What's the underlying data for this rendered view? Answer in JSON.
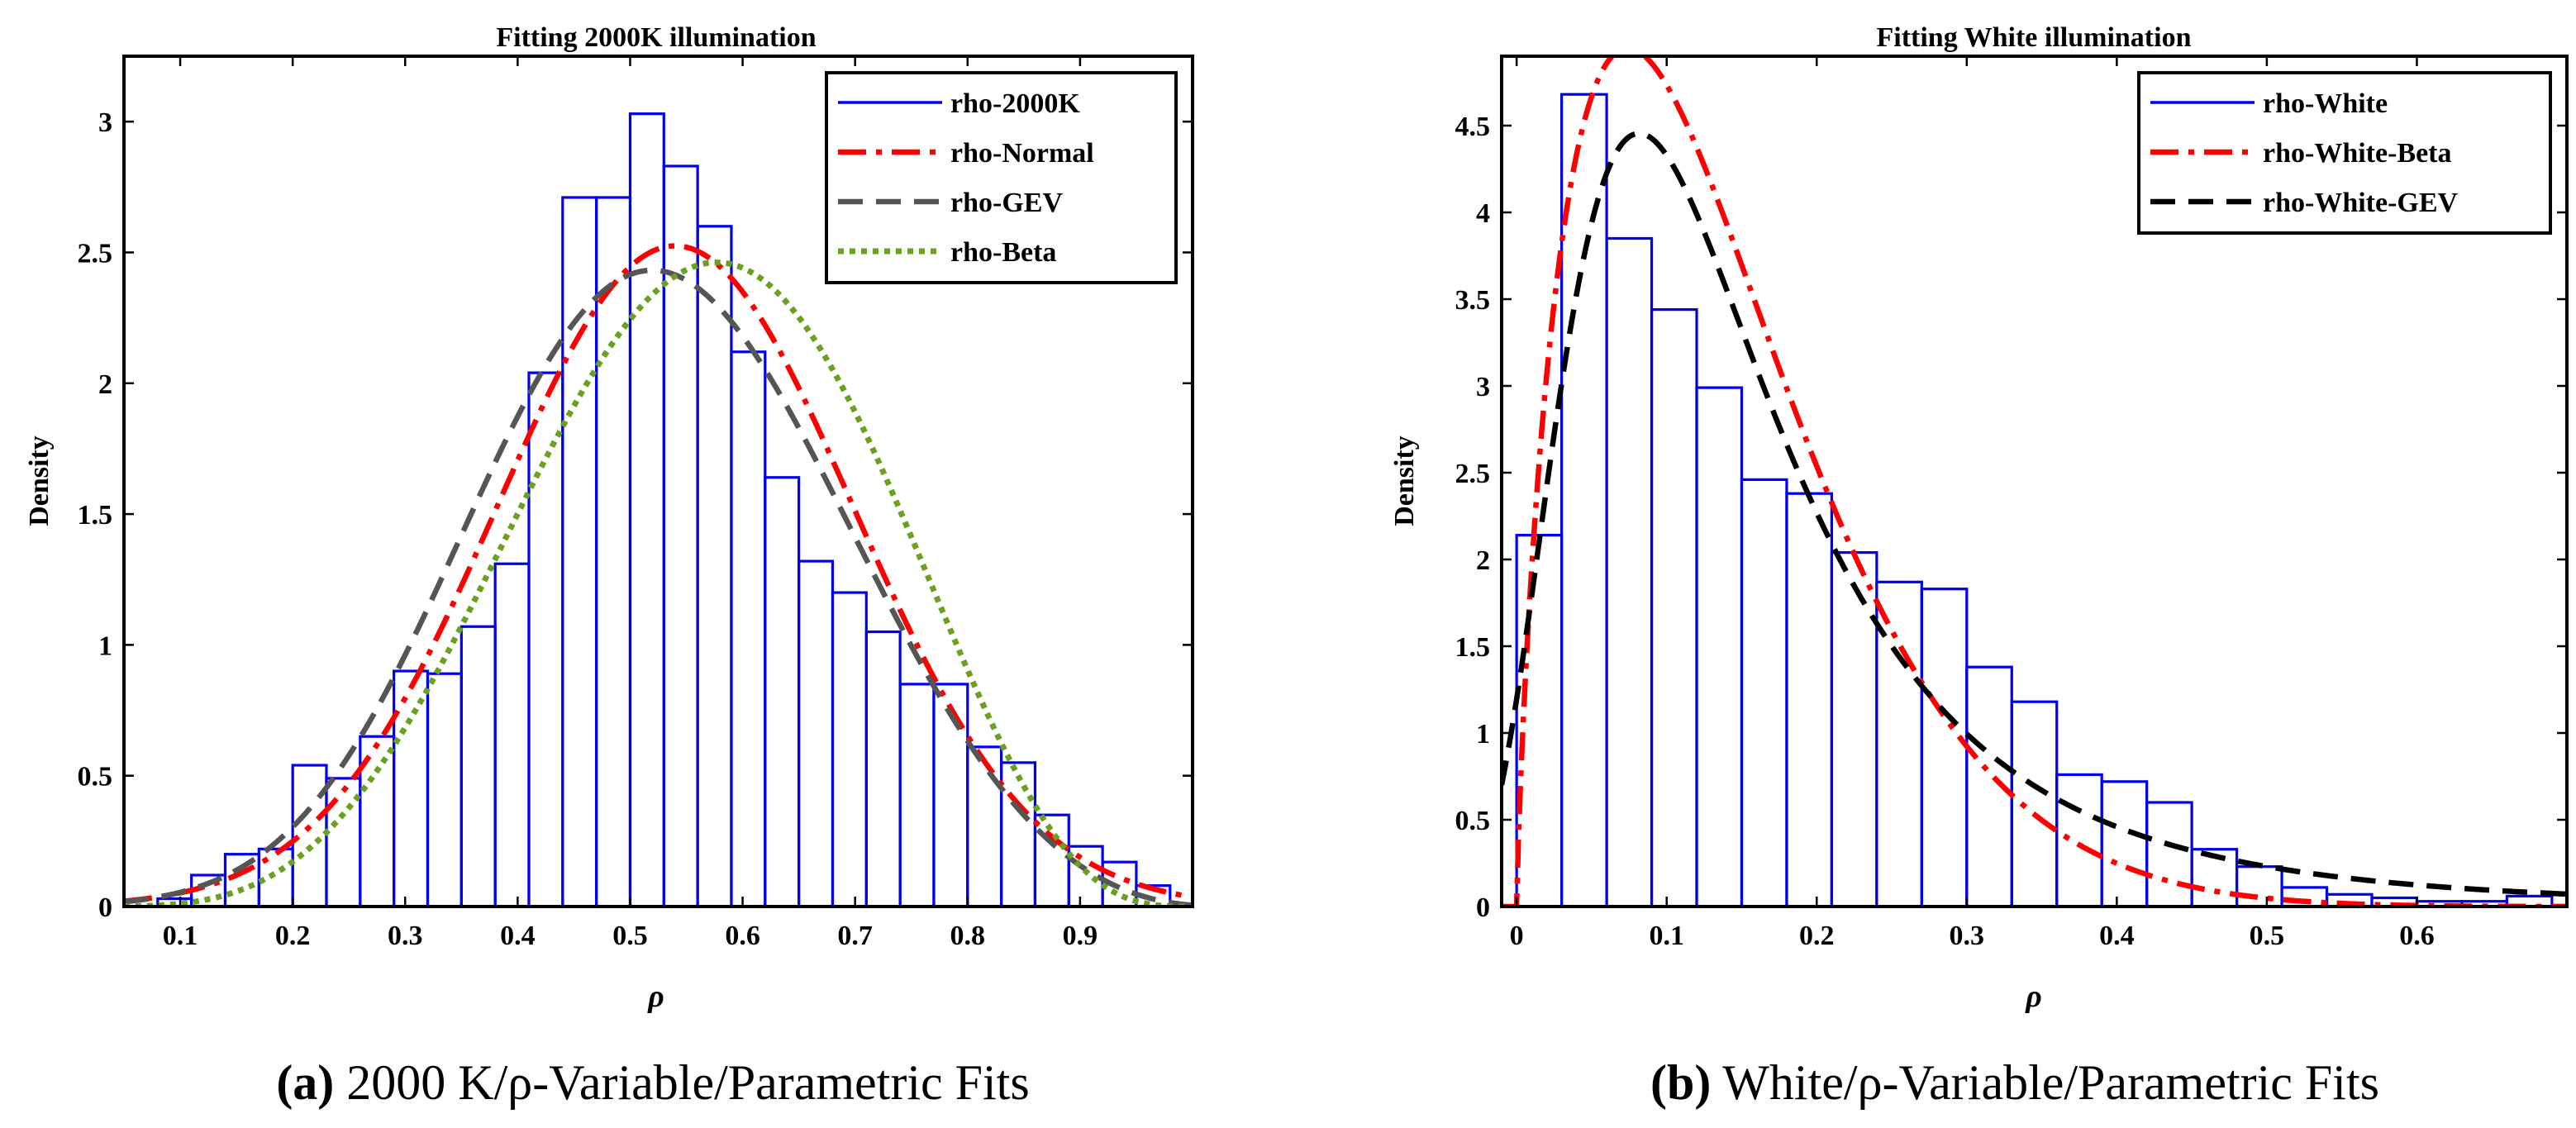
{
  "chart_data": [
    {
      "type": "histogram",
      "panel": "a",
      "title": "Fitting 2000K illumination",
      "xlabel": "ρ",
      "ylabel": "Density",
      "xlim": [
        0.05,
        1.0
      ],
      "ylim": [
        0,
        3.25
      ],
      "xticks": [
        "0.1",
        "0.2",
        "0.3",
        "0.4",
        "0.5",
        "0.6",
        "0.7",
        "0.8",
        "0.9"
      ],
      "xtick_values": [
        0.1,
        0.2,
        0.3,
        0.4,
        0.5,
        0.6,
        0.7,
        0.8,
        0.9
      ],
      "yticks": [
        "0",
        "0.5",
        "1",
        "1.5",
        "2",
        "2.5",
        "3"
      ],
      "ytick_values": [
        0,
        0.5,
        1,
        1.5,
        2,
        2.5,
        3
      ],
      "legend_position": "top-right",
      "histogram": {
        "name": "rho-2000K",
        "color": "#0000ee",
        "bin_edges": [
          0.05,
          0.08,
          0.11,
          0.14,
          0.17,
          0.2,
          0.23,
          0.26,
          0.29,
          0.32,
          0.35,
          0.38,
          0.41,
          0.44,
          0.47,
          0.5,
          0.53,
          0.56,
          0.59,
          0.62,
          0.65,
          0.68,
          0.71,
          0.74,
          0.77,
          0.8,
          0.83,
          0.86,
          0.89,
          0.92,
          0.95,
          0.98
        ],
        "densities": [
          0.0,
          0.03,
          0.12,
          0.2,
          0.22,
          0.54,
          0.49,
          0.65,
          0.9,
          0.89,
          1.07,
          1.31,
          2.04,
          2.71,
          2.71,
          3.03,
          2.83,
          2.6,
          2.12,
          1.64,
          1.32,
          1.2,
          1.05,
          0.85,
          0.85,
          0.61,
          0.55,
          0.35,
          0.23,
          0.17,
          0.08
        ]
      },
      "series": [
        {
          "name": "rho-Normal",
          "color": "#ff0000",
          "style": "dashdot",
          "dist": "normal",
          "params": {
            "mu": 0.54,
            "sigma": 0.158
          }
        },
        {
          "name": "rho-GEV",
          "color": "#555555",
          "style": "dashed",
          "dist": "gev",
          "params": {
            "k": -0.28,
            "sigma": 0.158,
            "mu": 0.47
          }
        },
        {
          "name": "rho-Beta",
          "color": "#6aa121",
          "style": "dotted",
          "dist": "beta",
          "params": {
            "a": 5.5,
            "b": 4.3
          }
        }
      ],
      "caption_label": "(a)",
      "caption_text": " 2000 K/ρ-Variable/Parametric Fits"
    },
    {
      "type": "histogram",
      "panel": "b",
      "title": "Fitting White illumination",
      "xlabel": "ρ",
      "ylabel": "Density",
      "xlim": [
        -0.01,
        0.7
      ],
      "ylim": [
        0,
        4.9
      ],
      "xticks": [
        "0",
        "0.1",
        "0.2",
        "0.3",
        "0.4",
        "0.5",
        "0.6"
      ],
      "xtick_values": [
        0,
        0.1,
        0.2,
        0.3,
        0.4,
        0.5,
        0.6
      ],
      "yticks": [
        "0",
        "0.5",
        "1",
        "1.5",
        "2",
        "2.5",
        "3",
        "3.5",
        "4",
        "4.5"
      ],
      "ytick_values": [
        0,
        0.5,
        1,
        1.5,
        2,
        2.5,
        3,
        3.5,
        4,
        4.5
      ],
      "legend_position": "top-right",
      "histogram": {
        "name": "rho-White",
        "color": "#0000ee",
        "bin_edges": [
          0.0,
          0.03,
          0.06,
          0.09,
          0.12,
          0.15,
          0.18,
          0.21,
          0.24,
          0.27,
          0.3,
          0.33,
          0.36,
          0.39,
          0.42,
          0.45,
          0.48,
          0.51,
          0.54,
          0.57,
          0.6,
          0.63,
          0.66,
          0.69
        ],
        "densities": [
          2.14,
          4.68,
          3.85,
          3.44,
          2.99,
          2.46,
          2.38,
          2.04,
          1.87,
          1.83,
          1.38,
          1.18,
          0.76,
          0.72,
          0.6,
          0.33,
          0.23,
          0.11,
          0.07,
          0.05,
          0.03,
          0.03,
          0.06
        ]
      },
      "series": [
        {
          "name": "rho-White-Beta",
          "color": "#ff0000",
          "style": "dashdot",
          "dist": "beta",
          "params": {
            "a": 1.8,
            "b": 11.0
          }
        },
        {
          "name": "rho-White-GEV",
          "color": "#000000",
          "style": "dashed",
          "dist": "gev",
          "params": {
            "k": 0.25,
            "sigma": 0.085,
            "mu": 0.1
          }
        }
      ],
      "caption_label": "(b)",
      "caption_text": " White/ρ-Variable/Parametric Fits"
    }
  ]
}
